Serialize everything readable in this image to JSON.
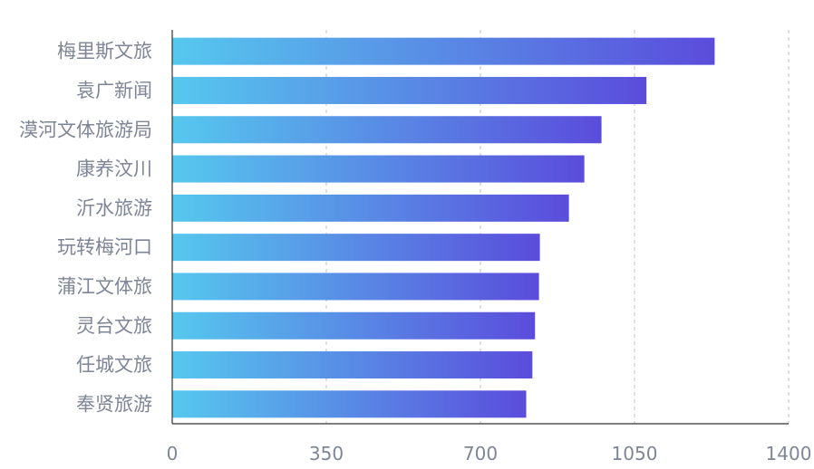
{
  "chart_data": {
    "type": "bar",
    "orientation": "horizontal",
    "categories": [
      "梅里斯文旅",
      "袁广新闻",
      "漠河文体旅游局",
      "康养汶川",
      "沂水旅游",
      "玩转梅河口",
      "蒲江文体旅",
      "灵台文旅",
      "任城文旅",
      "奉贤旅游"
    ],
    "values": [
      1232,
      1077,
      975,
      936,
      901,
      835,
      833,
      824,
      818,
      804
    ],
    "xlim": [
      0,
      1400
    ],
    "xticks": [
      "0",
      "350",
      "700",
      "1050",
      "1400"
    ],
    "title": "",
    "xlabel": "",
    "ylabel": "",
    "grid": "vertical-dashed",
    "legend": "none",
    "colors": {
      "bar_start": "#56c8ee",
      "bar_end": "#5b4cdc",
      "grid": "#c8c8cc",
      "axis": "#333333",
      "label": "#7e8597"
    }
  }
}
